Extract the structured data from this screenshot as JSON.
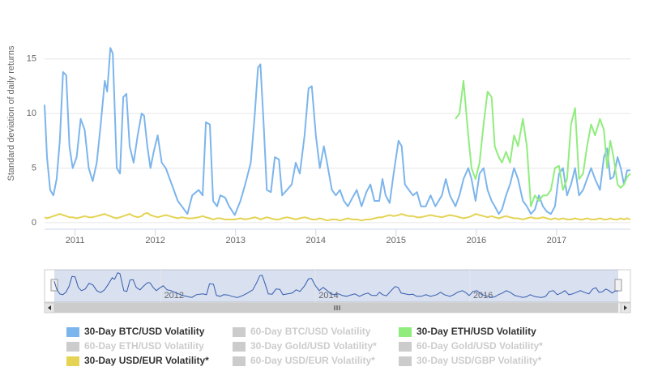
{
  "chart_data": {
    "type": "line",
    "y_axis_title": "Standard deviation of daily returns",
    "xlim": [
      2010.62,
      2017.92
    ],
    "xticks": [
      2011,
      2012,
      2013,
      2014,
      2015,
      2016,
      2017
    ],
    "ylim": [
      -0.6,
      19.8
    ],
    "yticks": [
      0,
      5,
      10,
      15
    ],
    "grid": true,
    "navigator_xticks": [
      2012,
      2014,
      2016
    ],
    "x": [
      2010.62,
      2010.65,
      2010.69,
      2010.73,
      2010.77,
      2010.81,
      2010.85,
      2010.89,
      2010.93,
      2010.97,
      2011.02,
      2011.07,
      2011.12,
      2011.17,
      2011.22,
      2011.27,
      2011.32,
      2011.37,
      2011.4,
      2011.44,
      2011.47,
      2011.52,
      2011.56,
      2011.6,
      2011.64,
      2011.68,
      2011.73,
      2011.78,
      2011.83,
      2011.86,
      2011.9,
      2011.94,
      2011.98,
      2012.03,
      2012.08,
      2012.13,
      2012.18,
      2012.23,
      2012.28,
      2012.33,
      2012.4,
      2012.46,
      2012.54,
      2012.59,
      2012.63,
      2012.68,
      2012.72,
      2012.77,
      2012.81,
      2012.87,
      2012.92,
      2012.99,
      2013.06,
      2013.12,
      2013.19,
      2013.24,
      2013.28,
      2013.31,
      2013.35,
      2013.39,
      2013.44,
      2013.49,
      2013.54,
      2013.58,
      2013.64,
      2013.7,
      2013.75,
      2013.8,
      2013.86,
      2013.91,
      2013.95,
      2014.0,
      2014.05,
      2014.1,
      2014.14,
      2014.2,
      2014.25,
      2014.3,
      2014.35,
      2014.4,
      2014.45,
      2014.51,
      2014.57,
      2014.63,
      2014.68,
      2014.73,
      2014.79,
      2014.83,
      2014.87,
      2014.92,
      2014.97,
      2015.03,
      2015.07,
      2015.11,
      2015.16,
      2015.21,
      2015.26,
      2015.31,
      2015.37,
      2015.43,
      2015.49,
      2015.57,
      2015.62,
      2015.67,
      2015.74,
      2015.79,
      2015.84,
      2015.9,
      2015.94,
      2015.99,
      2016.04,
      2016.09,
      2016.14,
      2016.19,
      2016.23,
      2016.28,
      2016.32,
      2016.37,
      2016.42,
      2016.47,
      2016.52,
      2016.58,
      2016.63,
      2016.68,
      2016.73,
      2016.78,
      2016.83,
      2016.88,
      2016.93,
      2016.98,
      2017.03,
      2017.08,
      2017.13,
      2017.18,
      2017.23,
      2017.28,
      2017.33,
      2017.38,
      2017.43,
      2017.48,
      2017.54,
      2017.59,
      2017.63,
      2017.67,
      2017.71,
      2017.76,
      2017.8,
      2017.84,
      2017.88,
      2017.92
    ],
    "series": [
      {
        "name": "30-Day BTC/USD Volatility",
        "color": "#7cb5ec",
        "visible": true,
        "values": [
          10.8,
          6,
          3,
          2.5,
          4,
          7.5,
          13.8,
          13.5,
          7,
          5,
          6,
          9.5,
          8.5,
          5,
          3.8,
          5.5,
          9,
          13,
          12,
          16,
          15.5,
          5,
          4.5,
          11.5,
          11.8,
          7,
          5.5,
          8,
          10,
          9.8,
          7,
          5,
          6.5,
          8,
          5.5,
          5,
          4,
          3,
          2,
          1.5,
          0.8,
          2.5,
          3,
          2.5,
          9.2,
          9,
          2,
          1.5,
          2.5,
          2.3,
          1.5,
          0.7,
          2,
          3.5,
          5.5,
          10,
          14.2,
          14.5,
          9,
          3,
          2.8,
          6,
          5.8,
          2.5,
          3,
          3.5,
          5.5,
          4.5,
          8,
          12.3,
          12.5,
          8,
          5,
          7,
          5.5,
          3,
          2.5,
          3,
          2,
          1.5,
          2.2,
          3,
          1.5,
          2.8,
          3.5,
          2,
          2,
          4,
          2.5,
          1.8,
          4.5,
          7.5,
          7,
          3.5,
          3,
          2.5,
          2.8,
          1.5,
          1.5,
          2.5,
          1.5,
          2.5,
          4,
          2.5,
          1.5,
          2.5,
          4,
          5,
          4,
          2,
          4.5,
          5,
          3,
          2,
          1.5,
          0.8,
          1.2,
          2.5,
          3.5,
          5,
          4,
          2,
          1.5,
          0.8,
          1.2,
          2.5,
          1.5,
          1,
          0.8,
          1.5,
          4.5,
          5,
          2.5,
          3.5,
          5,
          2.5,
          3,
          4,
          5,
          4,
          3,
          6,
          6.8,
          4,
          4.2,
          6,
          5,
          3.5,
          4.8,
          4.8
        ]
      },
      {
        "name": "60-Day BTC/USD Volatility",
        "color": "#cccccc",
        "visible": false
      },
      {
        "name": "30-Day ETH/USD Volatility",
        "color": "#90ed7d",
        "visible": true,
        "values": [
          null,
          null,
          null,
          null,
          null,
          null,
          null,
          null,
          null,
          null,
          null,
          null,
          null,
          null,
          null,
          null,
          null,
          null,
          null,
          null,
          null,
          null,
          null,
          null,
          null,
          null,
          null,
          null,
          null,
          null,
          null,
          null,
          null,
          null,
          null,
          null,
          null,
          null,
          null,
          null,
          null,
          null,
          null,
          null,
          null,
          null,
          null,
          null,
          null,
          null,
          null,
          null,
          null,
          null,
          null,
          null,
          null,
          null,
          null,
          null,
          null,
          null,
          null,
          null,
          null,
          null,
          null,
          null,
          null,
          null,
          null,
          null,
          null,
          null,
          null,
          null,
          null,
          null,
          null,
          null,
          null,
          null,
          null,
          null,
          null,
          null,
          null,
          null,
          null,
          null,
          null,
          null,
          null,
          null,
          null,
          null,
          null,
          null,
          null,
          null,
          null,
          null,
          null,
          null,
          9.5,
          10,
          13,
          8,
          5,
          4,
          5.5,
          9,
          12,
          11.5,
          7,
          6,
          5.5,
          6.5,
          5.5,
          8,
          7,
          9.5,
          7,
          1.5,
          2.5,
          2,
          2.5,
          2.5,
          3,
          5,
          5.2,
          3,
          4,
          9,
          10.5,
          4,
          4.5,
          7,
          9,
          8,
          9.5,
          8.5,
          5,
          7.5,
          6,
          3.5,
          3.2,
          3.5,
          4.2,
          4.5
        ]
      },
      {
        "name": "60-Day ETH/USD Volatility",
        "color": "#cccccc",
        "visible": false
      },
      {
        "name": "30-Day Gold/USD Volatility*",
        "color": "#cccccc",
        "visible": false
      },
      {
        "name": "60-Day Gold/USD Volatility*",
        "color": "#cccccc",
        "visible": false
      },
      {
        "name": "30-Day USD/EUR Volatility*",
        "color": "#e4d354",
        "visible": true,
        "values": [
          0.5,
          0.4,
          0.5,
          0.6,
          0.7,
          0.8,
          0.7,
          0.6,
          0.5,
          0.5,
          0.4,
          0.5,
          0.6,
          0.5,
          0.5,
          0.6,
          0.7,
          0.8,
          0.7,
          0.6,
          0.5,
          0.4,
          0.5,
          0.6,
          0.7,
          0.8,
          0.6,
          0.5,
          0.6,
          0.8,
          0.9,
          0.7,
          0.6,
          0.5,
          0.6,
          0.7,
          0.6,
          0.5,
          0.4,
          0.5,
          0.4,
          0.4,
          0.5,
          0.6,
          0.5,
          0.4,
          0.3,
          0.4,
          0.4,
          0.3,
          0.3,
          0.3,
          0.4,
          0.3,
          0.4,
          0.5,
          0.4,
          0.3,
          0.4,
          0.5,
          0.4,
          0.3,
          0.3,
          0.4,
          0.5,
          0.4,
          0.3,
          0.4,
          0.5,
          0.4,
          0.3,
          0.3,
          0.4,
          0.3,
          0.2,
          0.3,
          0.3,
          0.2,
          0.3,
          0.4,
          0.3,
          0.3,
          0.2,
          0.3,
          0.3,
          0.4,
          0.5,
          0.5,
          0.6,
          0.7,
          0.6,
          0.7,
          0.8,
          0.7,
          0.6,
          0.6,
          0.5,
          0.5,
          0.6,
          0.7,
          0.6,
          0.5,
          0.6,
          0.7,
          0.6,
          0.5,
          0.4,
          0.5,
          0.6,
          0.8,
          0.7,
          0.6,
          0.5,
          0.6,
          0.5,
          0.4,
          0.5,
          0.6,
          0.5,
          0.4,
          0.4,
          0.3,
          0.4,
          0.5,
          0.4,
          0.4,
          0.5,
          0.4,
          0.3,
          0.4,
          0.3,
          0.4,
          0.3,
          0.3,
          0.4,
          0.3,
          0.3,
          0.4,
          0.3,
          0.3,
          0.4,
          0.3,
          0.3,
          0.4,
          0.3,
          0.3,
          0.4,
          0.3,
          0.4,
          0.3
        ]
      },
      {
        "name": "60-Day USD/EUR Volatility*",
        "color": "#cccccc",
        "visible": false
      },
      {
        "name": "30-Day USD/GBP Volatility*",
        "color": "#cccccc",
        "visible": false
      }
    ]
  }
}
